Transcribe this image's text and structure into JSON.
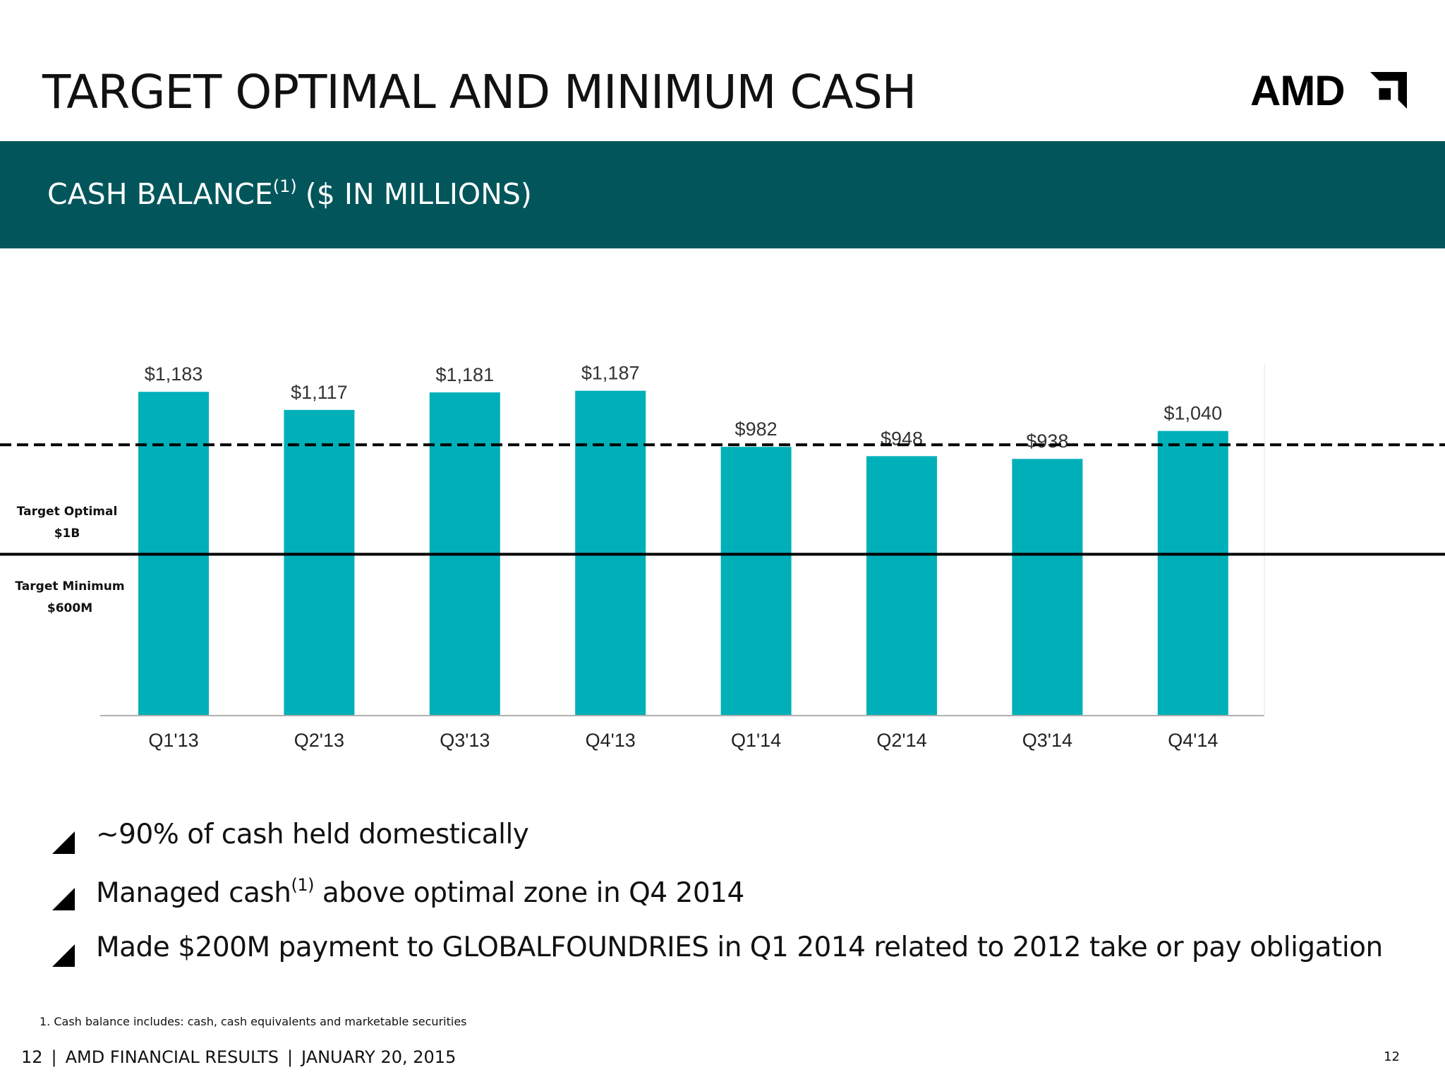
{
  "title": "TARGET OPTIMAL AND MINIMUM CASH",
  "logo": {
    "text": "AMD"
  },
  "banner": {
    "text": "CASH BALANCE",
    "superscript": "(1)",
    "unit": "($ IN MILLIONS)"
  },
  "colors": {
    "banner": "#02565b",
    "bar": "#00b0b9",
    "accent": "#111111"
  },
  "chart_data": {
    "type": "bar",
    "categories": [
      "Q1'13",
      "Q2'13",
      "Q3'13",
      "Q4'13",
      "Q1'14",
      "Q2'14",
      "Q3'14",
      "Q4'14"
    ],
    "values": [
      1183,
      1117,
      1181,
      1187,
      982,
      948,
      938,
      1040
    ],
    "data_labels": [
      "$1,183",
      "$1,117",
      "$1,181",
      "$1,187",
      "$982",
      "$948",
      "$938",
      "$1,040"
    ],
    "ylim": [
      0,
      1300
    ],
    "grid": false,
    "reference_lines": [
      {
        "label_line1": "Target Optimal",
        "label_line2": "$1B",
        "value": 1000,
        "style": "dashed"
      },
      {
        "label_line1": "Target Minimum",
        "label_line2": "$600M",
        "value": 600,
        "style": "solid"
      }
    ]
  },
  "bullets": [
    {
      "text": "~90% of cash held domestically"
    },
    {
      "text_before": "Managed cash",
      "superscript": "(1)",
      "text_after": " above optimal zone in Q4 2014"
    },
    {
      "text": "Made $200M payment to GLOBALFOUNDRIES in Q1 2014 related to 2012 take or pay obligation"
    }
  ],
  "footnote": "1. Cash balance includes: cash, cash equivalents and marketable securities",
  "footer": {
    "page": "12",
    "sep": "|",
    "name": "AMD FINANCIAL RESULTS",
    "sep2": "|",
    "date": "JANUARY 20, 2015"
  },
  "page_number_right": "12"
}
